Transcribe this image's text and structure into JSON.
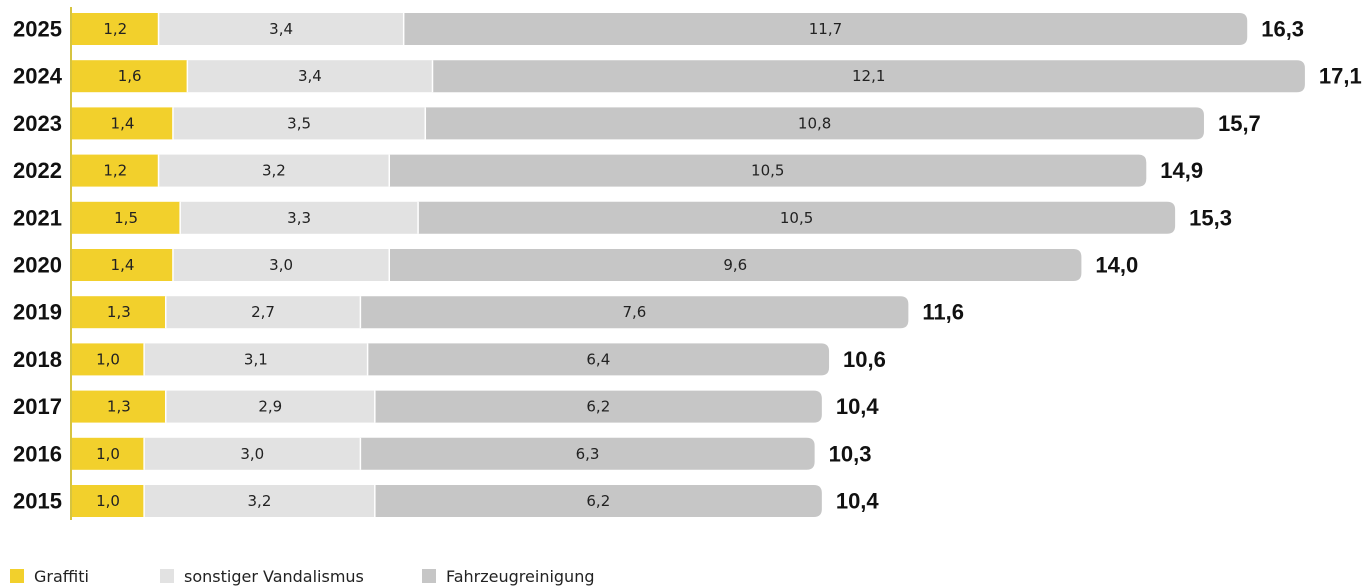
{
  "chart_data": {
    "type": "bar",
    "orientation": "horizontal",
    "stacked": true,
    "categories": [
      "2025",
      "2024",
      "2023",
      "2022",
      "2021",
      "2020",
      "2019",
      "2018",
      "2017",
      "2016",
      "2015"
    ],
    "series": [
      {
        "name": "Graffiti",
        "color": "#f2d02c",
        "values": [
          1.2,
          1.6,
          1.4,
          1.2,
          1.5,
          1.4,
          1.3,
          1.0,
          1.3,
          1.0,
          1.0
        ],
        "labels": [
          "1,2",
          "1,6",
          "1,4",
          "1,2",
          "1,5",
          "1,4",
          "1,3",
          "1,0",
          "1,3",
          "1,0",
          "1,0"
        ]
      },
      {
        "name": "sonstiger Vandalismus",
        "color": "#e2e2e2",
        "values": [
          3.4,
          3.4,
          3.5,
          3.2,
          3.3,
          3.0,
          2.7,
          3.1,
          2.9,
          3.0,
          3.2
        ],
        "labels": [
          "3,4",
          "3,4",
          "3,5",
          "3,2",
          "3,3",
          "3,0",
          "2,7",
          "3,1",
          "2,9",
          "3,0",
          "3,2"
        ]
      },
      {
        "name": "Fahrzeugreinigung",
        "color": "#c6c6c6",
        "values": [
          11.7,
          12.1,
          10.8,
          10.5,
          10.5,
          9.6,
          7.6,
          6.4,
          6.2,
          6.3,
          6.2
        ],
        "labels": [
          "11,7",
          "12,1",
          "10,8",
          "10,5",
          "10,5",
          "9,6",
          "7,6",
          "6,4",
          "6,2",
          "6,3",
          "6,2"
        ]
      }
    ],
    "totals": [
      16.3,
      17.1,
      15.7,
      14.9,
      15.3,
      14.0,
      11.6,
      10.6,
      10.4,
      10.3,
      10.4
    ],
    "total_labels": [
      "16,3",
      "17,1",
      "15,7",
      "14,9",
      "15,3",
      "14,0",
      "11,6",
      "10,6",
      "10,4",
      "10,3",
      "10,4"
    ],
    "xlim": [
      0,
      17.1
    ],
    "grid": false,
    "legend_position": "bottom-left"
  },
  "legend": {
    "items": [
      {
        "label": "Graffiti",
        "color": "#f2d02c"
      },
      {
        "label": "sonstiger Vandalismus",
        "color": "#e2e2e2"
      },
      {
        "label": "Fahrzeugreinigung",
        "color": "#c6c6c6"
      }
    ]
  }
}
